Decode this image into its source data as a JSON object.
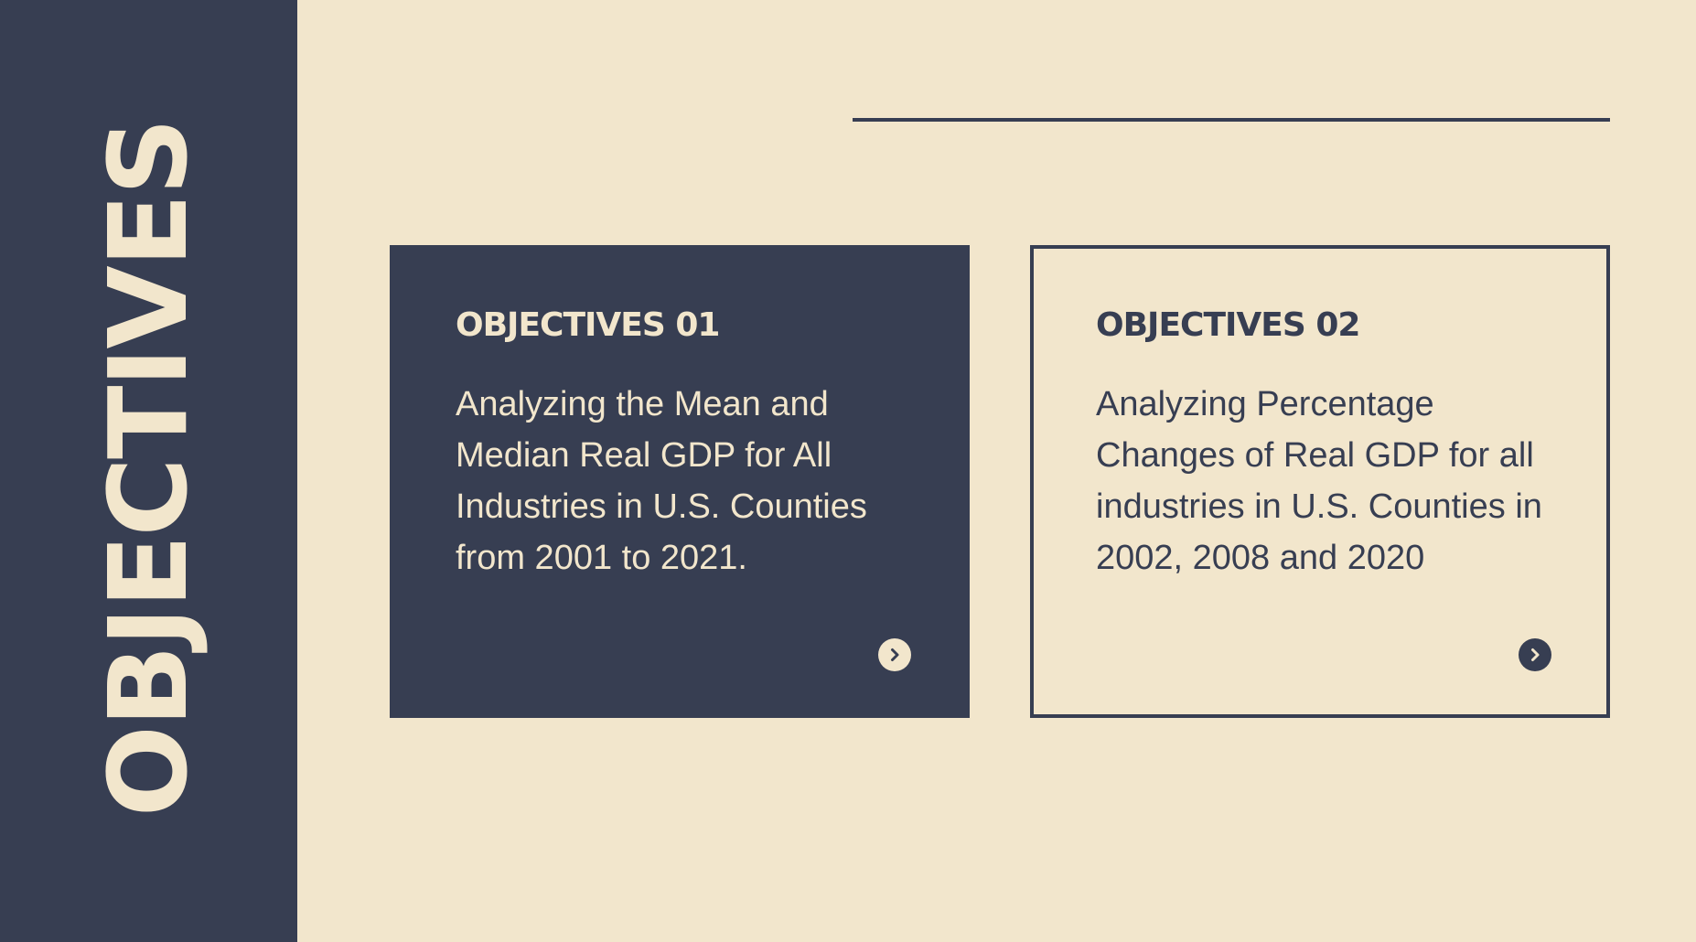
{
  "sidebar": {
    "title": "OBJECTIVES"
  },
  "cards": [
    {
      "heading": "OBJECTIVES 01",
      "body": "Analyzing the Mean and Median Real GDP for All Industries in U.S. Counties from 2001 to 2021.",
      "icon": "chevron-right-circle-icon"
    },
    {
      "heading": "OBJECTIVES 02",
      "body": "Analyzing Percentage Changes of Real GDP for all industries in U.S. Counties in 2002, 2008 and 2020",
      "icon": "chevron-right-circle-icon"
    }
  ],
  "colors": {
    "navy": "#373e52",
    "cream": "#f2e6cc"
  }
}
